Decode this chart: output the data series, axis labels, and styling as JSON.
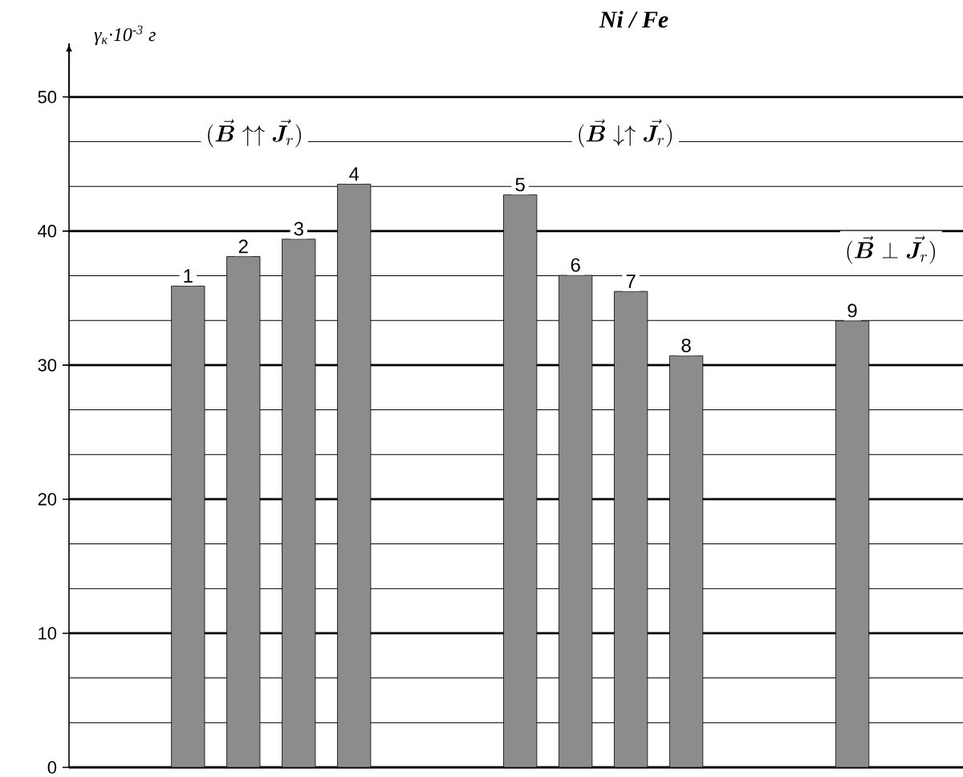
{
  "chart_data": {
    "type": "bar",
    "title": "Ni / Fe",
    "ylabel": "γ$_{к}$·10$^{-3}$ г",
    "categories": [
      "1",
      "2",
      "3",
      "4",
      null,
      null,
      "5",
      "6",
      "7",
      "8",
      null,
      null,
      "9"
    ],
    "values": [
      35.9,
      38.1,
      39.4,
      43.5,
      null,
      null,
      42.7,
      36.7,
      35.5,
      30.7,
      null,
      null,
      33.3
    ],
    "color": "#8c8c8c",
    "ylim": [
      0,
      54
    ],
    "yticks": [
      0,
      {
        "value": 3.33,
        "label": null
      },
      {
        "value": 6.67,
        "label": null
      },
      10,
      {
        "value": 13.33,
        "label": null
      },
      {
        "value": 16.67,
        "label": null
      },
      20,
      {
        "value": 23.33,
        "label": null
      },
      {
        "value": 26.67,
        "label": null
      },
      30,
      {
        "value": 33.33,
        "label": null
      },
      {
        "value": 36.67,
        "label": null
      },
      40,
      {
        "value": 43.33,
        "label": null
      },
      {
        "value": 46.67,
        "label": null
      },
      50
    ],
    "grid": "y",
    "annotations": [
      "(\\vec{\\boldsymbol{B}}\\uparrow\\uparrow\\vec{\\boldsymbol{J}}_r)",
      "(\\vec{\\boldsymbol{B}}\\downarrow\\uparrow\\vec{\\boldsymbol{J}}_r)",
      "(\\vec{\\boldsymbol{B}}\\perp\\vec{\\boldsymbol{J}}_r)"
    ]
  }
}
